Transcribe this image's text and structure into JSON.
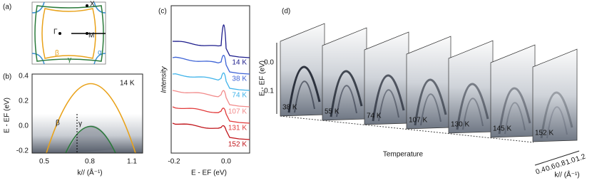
{
  "panel_a": {
    "label": "(a)",
    "points": [
      "X",
      "Γ",
      "M"
    ],
    "bands": [
      "β",
      "α",
      "γ"
    ]
  },
  "panel_b": {
    "label": "(b)",
    "temperature": "14 K",
    "y_label": "E - EF (eV)",
    "x_label": "k// (Å⁻¹)",
    "yticks": [
      "0.4",
      "0.2",
      "0.0",
      "-0.2"
    ],
    "xticks": [
      "0.5",
      "0.8",
      "1.1"
    ],
    "bands": [
      "β",
      "γ"
    ]
  },
  "panel_c": {
    "label": "(c)",
    "y_label": "Intensity",
    "x_label": "E - EF (eV)",
    "xticks": [
      "-0.2",
      "0.0"
    ],
    "temperatures": [
      "14 K",
      "38 K",
      "74 K",
      "107 K",
      "131 K",
      "152 K"
    ]
  },
  "panel_d": {
    "label": "(d)",
    "y_label": "E - EF (eV)",
    "yticks": [
      "0.0",
      "-0.1"
    ],
    "depth_label": "Temperature",
    "temperatures": [
      "38 K",
      "55 K",
      "74 K",
      "107 K",
      "130 K",
      "145 K",
      "152 K"
    ],
    "k_label": "k// (Å⁻¹)",
    "kticks": [
      "0.4",
      "0.6",
      "0.8",
      "1.0",
      "1.2"
    ]
  }
}
